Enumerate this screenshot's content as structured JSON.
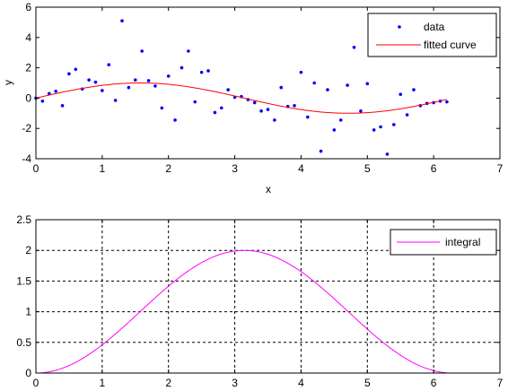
{
  "chart_data": [
    {
      "type": "scatter",
      "title": "",
      "xlabel": "x",
      "ylabel": "y",
      "xlim": [
        0,
        7
      ],
      "ylim": [
        -4,
        6
      ],
      "xticks": [
        0,
        1,
        2,
        3,
        4,
        5,
        6,
        7
      ],
      "yticks": [
        -4,
        -2,
        0,
        2,
        4,
        6
      ],
      "grid": false,
      "legend_position": "top-right",
      "series": [
        {
          "name": "data",
          "style": "markers",
          "color": "#0000ff",
          "points": [
            [
              0.0,
              0.0
            ],
            [
              0.1,
              -0.2
            ],
            [
              0.2,
              0.3
            ],
            [
              0.3,
              0.45
            ],
            [
              0.4,
              -0.5
            ],
            [
              0.5,
              1.6
            ],
            [
              0.6,
              1.9
            ],
            [
              0.7,
              0.6
            ],
            [
              0.8,
              1.2
            ],
            [
              0.9,
              1.05
            ],
            [
              1.0,
              0.5
            ],
            [
              1.1,
              2.2
            ],
            [
              1.2,
              -0.15
            ],
            [
              1.3,
              5.1
            ],
            [
              1.4,
              0.7
            ],
            [
              1.5,
              1.2
            ],
            [
              1.6,
              3.1
            ],
            [
              1.7,
              1.15
            ],
            [
              1.8,
              0.8
            ],
            [
              1.9,
              -0.65
            ],
            [
              2.0,
              1.45
            ],
            [
              2.1,
              -1.45
            ],
            [
              2.2,
              2.0
            ],
            [
              2.3,
              3.1
            ],
            [
              2.4,
              -0.25
            ],
            [
              2.5,
              1.7
            ],
            [
              2.6,
              1.8
            ],
            [
              2.7,
              -0.95
            ],
            [
              2.8,
              -0.65
            ],
            [
              2.9,
              0.55
            ],
            [
              3.0,
              0.05
            ],
            [
              3.1,
              0.1
            ],
            [
              3.2,
              -0.1
            ],
            [
              3.3,
              -0.3
            ],
            [
              3.4,
              -0.85
            ],
            [
              3.5,
              -0.75
            ],
            [
              3.6,
              -1.45
            ],
            [
              3.7,
              0.7
            ],
            [
              3.8,
              -0.55
            ],
            [
              3.9,
              -0.5
            ],
            [
              4.0,
              1.7
            ],
            [
              4.1,
              -1.25
            ],
            [
              4.2,
              1.0
            ],
            [
              4.3,
              -3.5
            ],
            [
              4.4,
              0.55
            ],
            [
              4.5,
              -2.1
            ],
            [
              4.6,
              -1.45
            ],
            [
              4.7,
              0.85
            ],
            [
              4.8,
              3.35
            ],
            [
              4.9,
              -0.85
            ],
            [
              5.0,
              0.95
            ],
            [
              5.1,
              -2.1
            ],
            [
              5.2,
              -1.9
            ],
            [
              5.3,
              -3.7
            ],
            [
              5.4,
              -1.75
            ],
            [
              5.5,
              0.25
            ],
            [
              5.6,
              -1.1
            ],
            [
              5.7,
              0.55
            ],
            [
              5.8,
              -0.5
            ],
            [
              5.9,
              -0.35
            ],
            [
              6.0,
              -0.3
            ],
            [
              6.1,
              -0.2
            ],
            [
              6.2,
              -0.25
            ]
          ]
        },
        {
          "name": "fitted curve",
          "style": "line",
          "color": "#ff0000",
          "function": "sin(x)",
          "x_range": [
            0,
            6.2
          ]
        }
      ]
    },
    {
      "type": "line",
      "title": "",
      "xlabel": "",
      "ylabel": "",
      "xlim": [
        0,
        7
      ],
      "ylim": [
        0,
        2.5
      ],
      "xticks": [
        0,
        1,
        2,
        3,
        4,
        5,
        6,
        7
      ],
      "yticks": [
        0,
        0.5,
        1,
        1.5,
        2,
        2.5
      ],
      "grid": true,
      "legend_position": "top-right",
      "series": [
        {
          "name": "integral",
          "style": "line",
          "color": "#ff00ff",
          "function": "1 - cos(x)",
          "x_range": [
            0,
            6.2
          ]
        }
      ]
    }
  ]
}
